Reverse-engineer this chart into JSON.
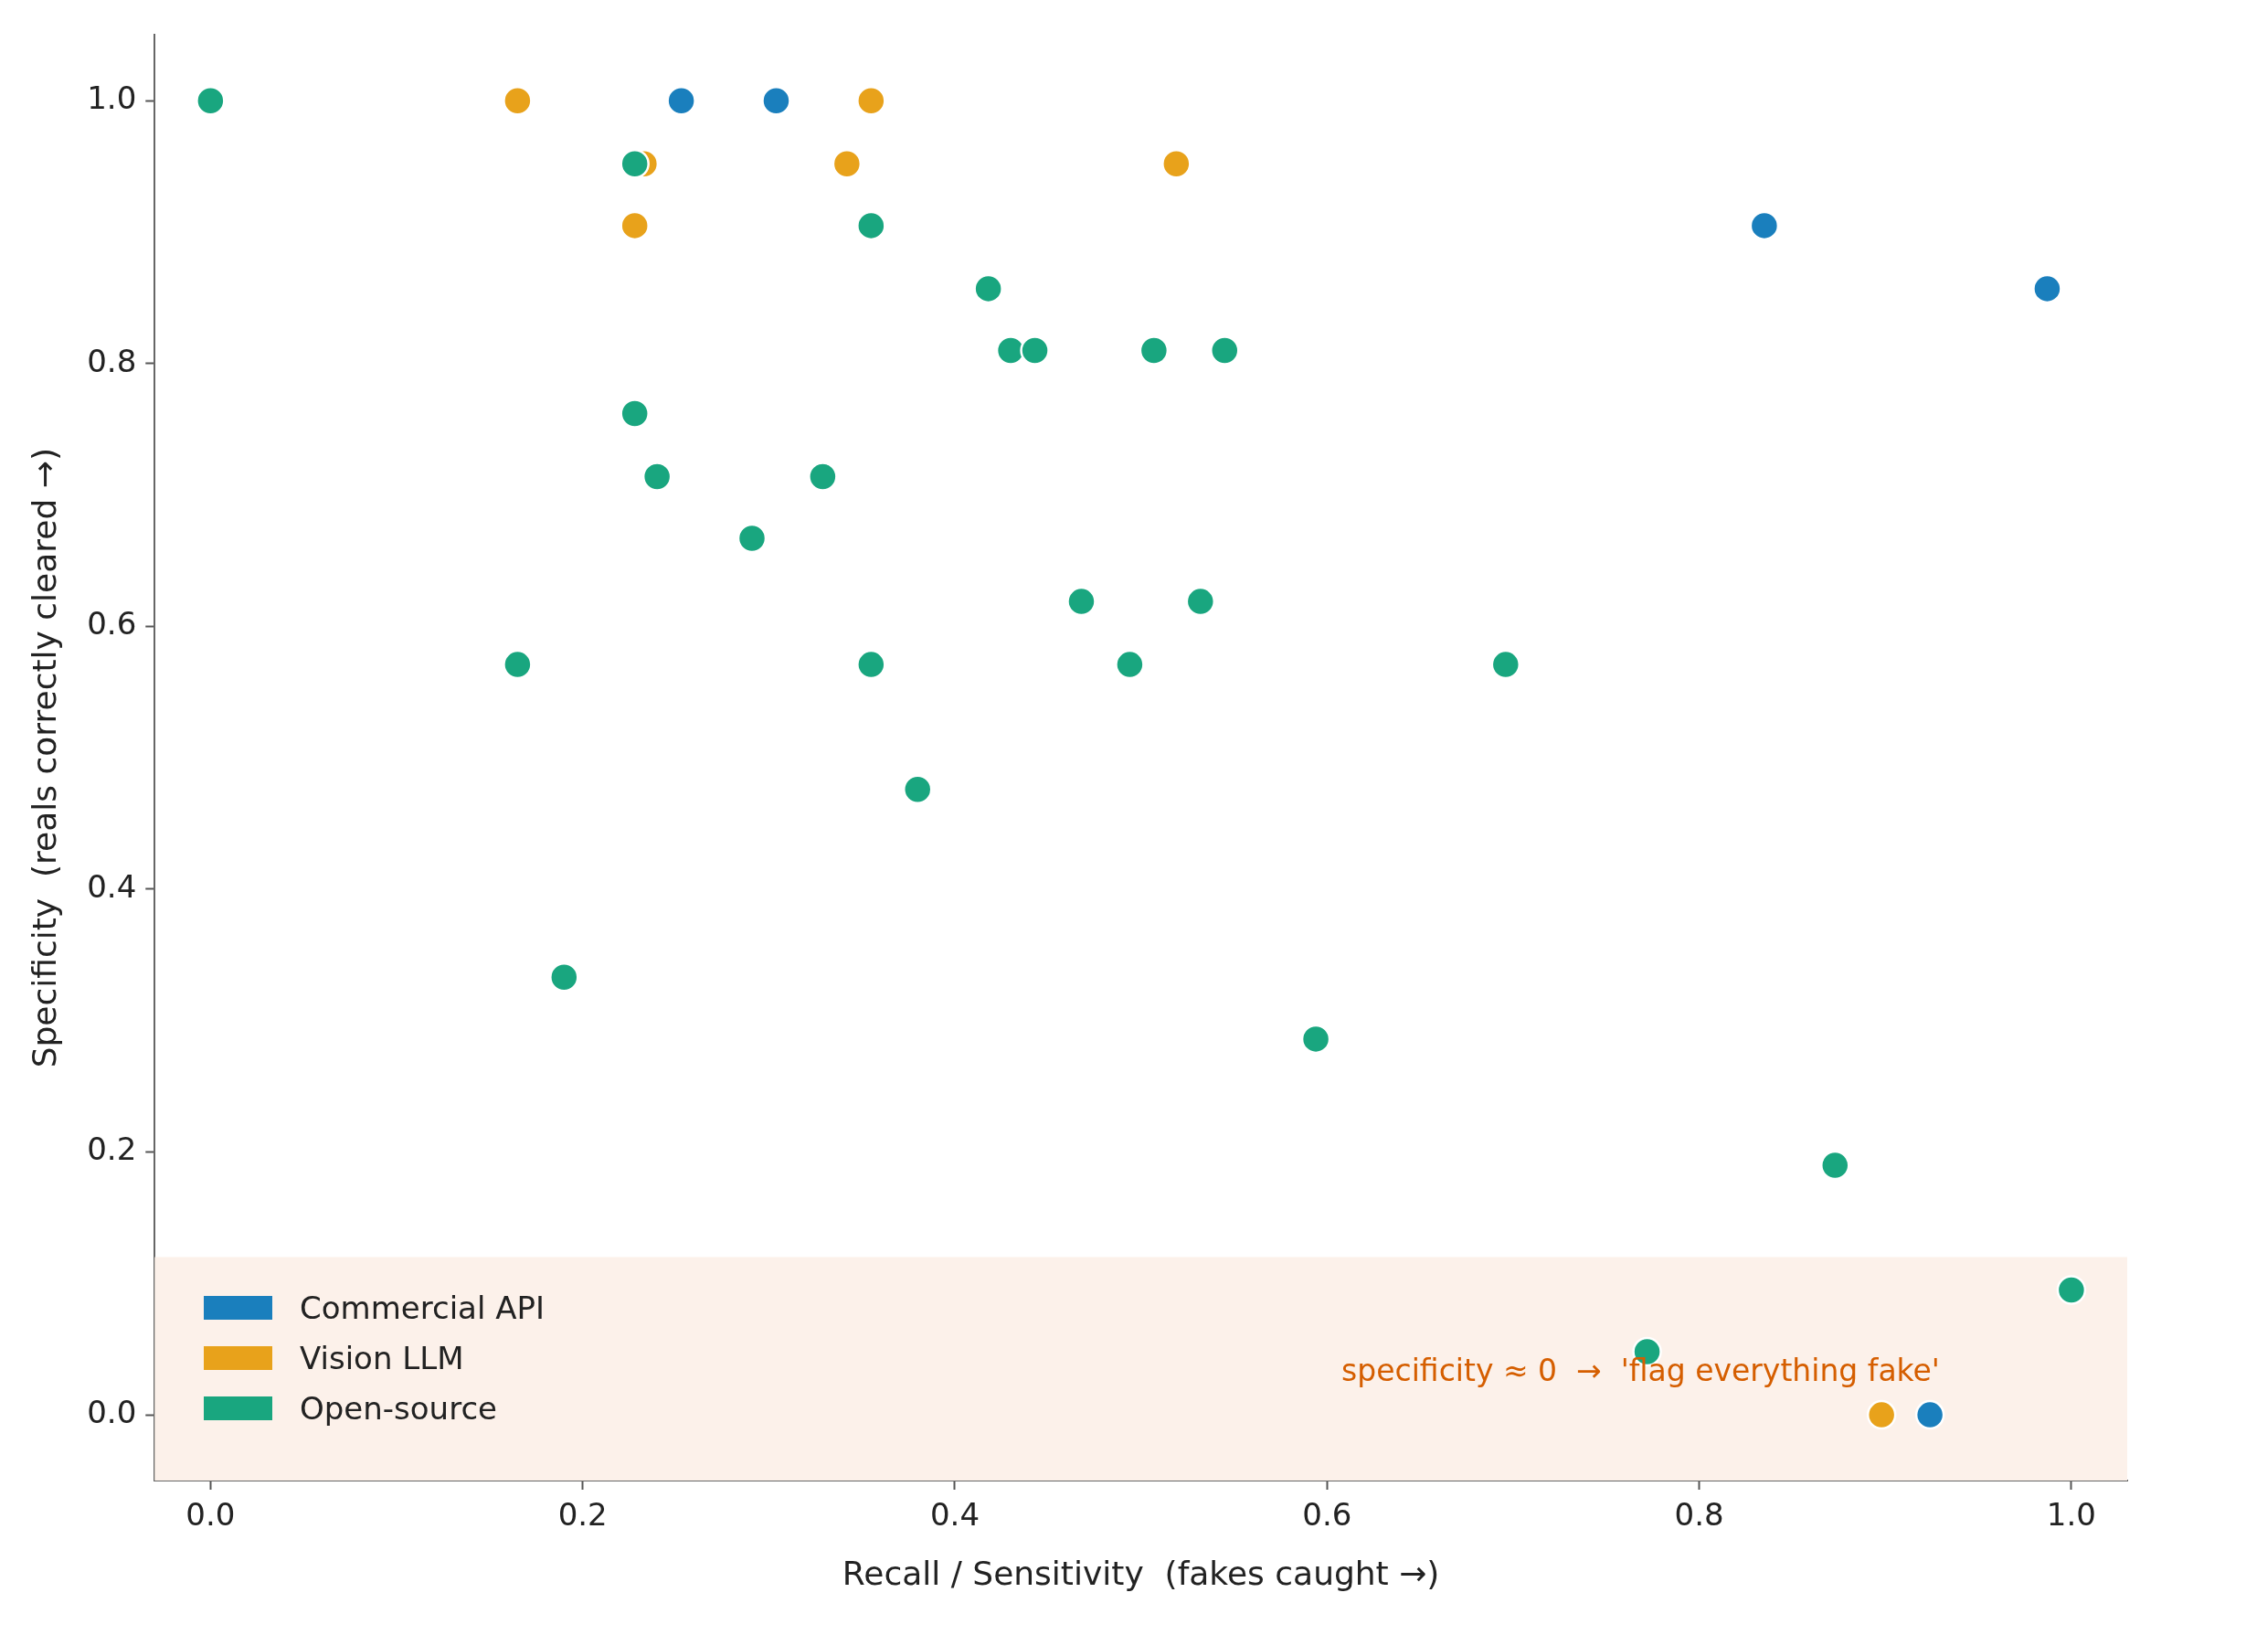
{
  "chart_data": {
    "type": "scatter",
    "xlabel": "Recall / Sensitivity  (fakes caught →)",
    "ylabel": "Specificity  (reals correctly cleared →)",
    "xlim": [
      -0.03,
      1.03
    ],
    "ylim": [
      -0.05,
      1.05
    ],
    "xticks": [
      {
        "value": 0,
        "label": "0.0"
      },
      {
        "value": 0.2,
        "label": "0.2"
      },
      {
        "value": 0.4,
        "label": "0.4"
      },
      {
        "value": 0.6,
        "label": "0.6"
      },
      {
        "value": 0.8,
        "label": "0.8"
      },
      {
        "value": 1,
        "label": "1.0"
      }
    ],
    "yticks": [
      {
        "value": 0,
        "label": "0.0"
      },
      {
        "value": 0.2,
        "label": "0.2"
      },
      {
        "value": 0.4,
        "label": "0.4"
      },
      {
        "value": 0.6,
        "label": "0.6"
      },
      {
        "value": 0.8,
        "label": "0.8"
      },
      {
        "value": 1,
        "label": "1.0"
      }
    ],
    "grid": false,
    "legend": "bottom left",
    "marker": "circle",
    "bands": [
      {
        "axis": "y",
        "from": -0.05,
        "to": 0.12,
        "label": "specificity ≈ 0  →  'flag everything fake'",
        "color": "#fcf1ea"
      }
    ],
    "series": [
      {
        "name": "Commercial API",
        "color": "#1a7fbd",
        "x": [
          0.253,
          0.304,
          0.835,
          0.987,
          0.924
        ],
        "values": [
          1.0,
          1.0,
          0.905,
          0.857,
          0.0
        ]
      },
      {
        "name": "Vision LLM",
        "color": "#e8a21b",
        "x": [
          0.165,
          0.355,
          0.233,
          0.342,
          0.519,
          0.228,
          0.898
        ],
        "values": [
          1.0,
          1.0,
          0.952,
          0.952,
          0.952,
          0.905,
          0.0
        ]
      },
      {
        "name": "Open-source",
        "color": "#19a67f",
        "x": [
          0,
          0.228,
          0.355,
          0.418,
          0.43,
          0.443,
          0.507,
          0.545,
          0.228,
          0.24,
          0.329,
          0.291,
          0.165,
          0.355,
          0.468,
          0.532,
          0.494,
          0.696,
          0.38,
          0.19,
          0.594,
          0.873,
          1.0,
          0.772
        ],
        "values": [
          1.0,
          0.952,
          0.905,
          0.857,
          0.81,
          0.81,
          0.81,
          0.81,
          0.762,
          0.714,
          0.714,
          0.667,
          0.571,
          0.571,
          0.619,
          0.619,
          0.571,
          0.571,
          0.476,
          0.333,
          0.286,
          0.19,
          0.095,
          0.048
        ]
      }
    ]
  }
}
